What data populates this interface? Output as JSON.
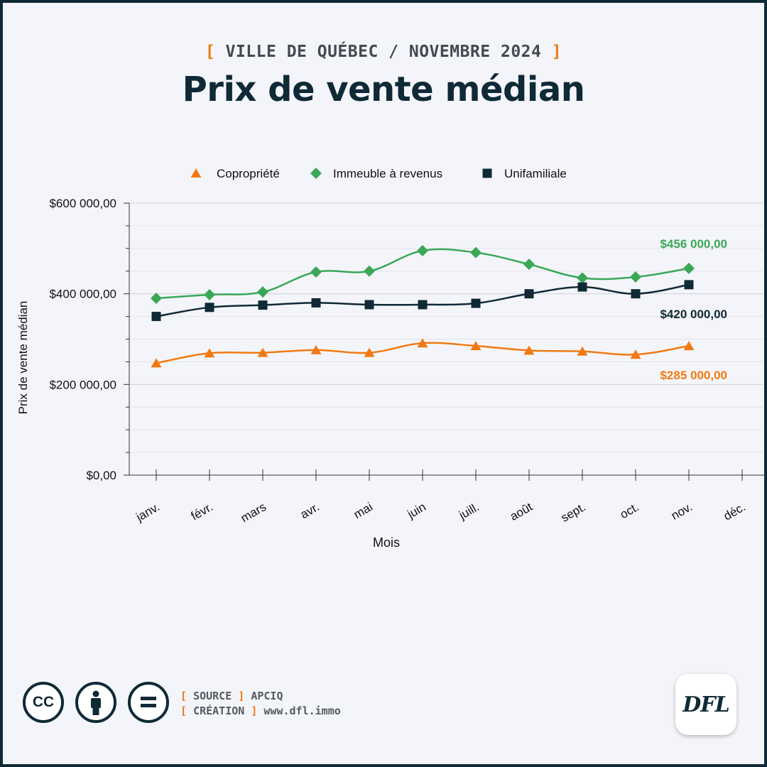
{
  "header": {
    "kicker_open": "[",
    "kicker_text": "VILLE DE QUÉBEC / NOVEMBRE 2024",
    "kicker_close": "]",
    "title": "Prix de vente médian"
  },
  "colors": {
    "copropriete": "#f07a12",
    "immeuble": "#3aa856",
    "unifamiliale": "#0f2a36",
    "accent": "#f07a12",
    "dark": "#0f2a36"
  },
  "chart_data": {
    "type": "line",
    "categories": [
      "janv.",
      "févr.",
      "mars",
      "avr.",
      "mai",
      "juin",
      "juill.",
      "août",
      "sept.",
      "oct.",
      "nov.",
      "déc."
    ],
    "series": [
      {
        "name": "Copropriété",
        "marker": "triangle",
        "color": "#f07a12",
        "values": [
          247000,
          269000,
          270000,
          276000,
          270000,
          291000,
          285000,
          275000,
          273000,
          266000,
          285000,
          null
        ]
      },
      {
        "name": "Immeuble à revenus",
        "marker": "diamond",
        "color": "#3aa856",
        "values": [
          390000,
          398000,
          404000,
          448000,
          450000,
          495000,
          491000,
          465000,
          435000,
          437000,
          456000,
          null
        ]
      },
      {
        "name": "Unifamiliale",
        "marker": "square",
        "color": "#0f2a36",
        "values": [
          350000,
          370000,
          375000,
          380000,
          376000,
          376000,
          379000,
          400000,
          415000,
          400000,
          420000,
          null
        ]
      }
    ],
    "end_labels": [
      "$285 000,00",
      "$456 000,00",
      "$420 000,00"
    ],
    "xlabel": "Mois",
    "ylabel": "Prix de vente médian",
    "ylim": [
      0,
      600000
    ],
    "yticks": [
      0,
      200000,
      400000,
      600000
    ],
    "ytick_labels": [
      "$0,00",
      "$200 000,00",
      "$400 000,00",
      "$600 000,00"
    ],
    "grid": true,
    "legend_position": "top-center"
  },
  "footer": {
    "cc_text": "CC",
    "source_label": "SOURCE",
    "source_value": "APCIQ",
    "creation_label": "CRÉATION",
    "creation_value": "www.dfl.immo",
    "bracket_open": "[",
    "bracket_close": "]",
    "logo_text": "DFL"
  }
}
